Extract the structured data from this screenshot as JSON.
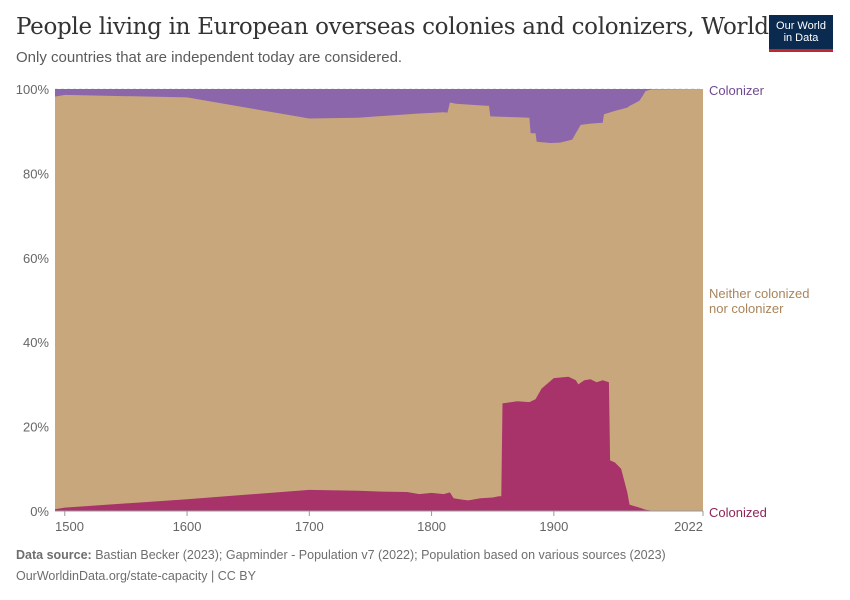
{
  "header": {
    "title": "People living in European overseas colonies and colonizers, World",
    "subtitle": "Only countries that are independent today are considered.",
    "logo_line1": "Our World",
    "logo_line2": "in Data"
  },
  "footer": {
    "source_label": "Data source:",
    "source_text": "Bastian Becker (2023); Gapminder - Population v7 (2022); Population based on various sources (2023)",
    "url_text": "OurWorldinData.org/state-capacity | CC BY"
  },
  "colors": {
    "colonized": "#a8326a",
    "neither": "#c9a77c",
    "colonizer": "#8c66ab",
    "colonized_label": "#8f2459",
    "neither_label": "#a9855b",
    "colonizer_label": "#6f4a92",
    "axis_text": "#666666",
    "grid": "#dddddd"
  },
  "chart_data": {
    "type": "area",
    "stacked": true,
    "percent": true,
    "xlim": [
      1492,
      2022
    ],
    "ylim": [
      0,
      100
    ],
    "x_ticks": [
      "1500",
      "1600",
      "1700",
      "1800",
      "1900",
      "2022"
    ],
    "y_ticks": [
      "0%",
      "20%",
      "40%",
      "60%",
      "80%",
      "100%"
    ],
    "series": [
      {
        "name": "Colonized",
        "points": [
          [
            1492,
            0.4
          ],
          [
            1500,
            0.8
          ],
          [
            1600,
            2.8
          ],
          [
            1700,
            5.0
          ],
          [
            1740,
            4.8
          ],
          [
            1760,
            4.6
          ],
          [
            1780,
            4.5
          ],
          [
            1790,
            4.0
          ],
          [
            1800,
            4.3
          ],
          [
            1810,
            4.0
          ],
          [
            1815,
            4.4
          ],
          [
            1818,
            3.0
          ],
          [
            1825,
            2.7
          ],
          [
            1830,
            2.5
          ],
          [
            1840,
            3.0
          ],
          [
            1850,
            3.2
          ],
          [
            1855,
            3.5
          ],
          [
            1857,
            3.5
          ],
          [
            1858,
            25.5
          ],
          [
            1870,
            26.0
          ],
          [
            1880,
            25.8
          ],
          [
            1885,
            26.5
          ],
          [
            1890,
            29.0
          ],
          [
            1900,
            31.5
          ],
          [
            1912,
            31.8
          ],
          [
            1918,
            31.0
          ],
          [
            1920,
            30.0
          ],
          [
            1925,
            31.0
          ],
          [
            1930,
            31.2
          ],
          [
            1935,
            30.5
          ],
          [
            1940,
            31.0
          ],
          [
            1945,
            30.5
          ],
          [
            1946,
            12.0
          ],
          [
            1950,
            11.5
          ],
          [
            1955,
            10.0
          ],
          [
            1960,
            4.5
          ],
          [
            1962,
            1.5
          ],
          [
            1970,
            0.8
          ],
          [
            1975,
            0.3
          ],
          [
            1980,
            0.1
          ],
          [
            2022,
            0.1
          ]
        ]
      },
      {
        "name": "Neither colonized nor colonizer",
        "fill_to": 100
      },
      {
        "name": "Colonizer",
        "top_boundary": [
          [
            1492,
            98.2
          ],
          [
            1500,
            98.6
          ],
          [
            1600,
            98.0
          ],
          [
            1700,
            93.0
          ],
          [
            1740,
            93.2
          ],
          [
            1760,
            93.6
          ],
          [
            1790,
            94.2
          ],
          [
            1810,
            94.5
          ],
          [
            1813,
            94.4
          ],
          [
            1815,
            96.8
          ],
          [
            1820,
            96.5
          ],
          [
            1835,
            96.2
          ],
          [
            1847,
            96.0
          ],
          [
            1848,
            93.5
          ],
          [
            1870,
            93.3
          ],
          [
            1880,
            93.2
          ],
          [
            1881,
            89.5
          ],
          [
            1885,
            89.5
          ],
          [
            1886,
            87.5
          ],
          [
            1897,
            87.2
          ],
          [
            1905,
            87.3
          ],
          [
            1915,
            88.0
          ],
          [
            1918,
            89.5
          ],
          [
            1922,
            91.5
          ],
          [
            1930,
            91.8
          ],
          [
            1940,
            92.0
          ],
          [
            1941,
            94.0
          ],
          [
            1950,
            94.8
          ],
          [
            1960,
            95.6
          ],
          [
            1962,
            96.0
          ],
          [
            1970,
            97.2
          ],
          [
            1973,
            98.5
          ],
          [
            1975,
            99.5
          ],
          [
            1980,
            99.9
          ],
          [
            2022,
            100
          ]
        ]
      }
    ],
    "legend_placement": "right"
  }
}
